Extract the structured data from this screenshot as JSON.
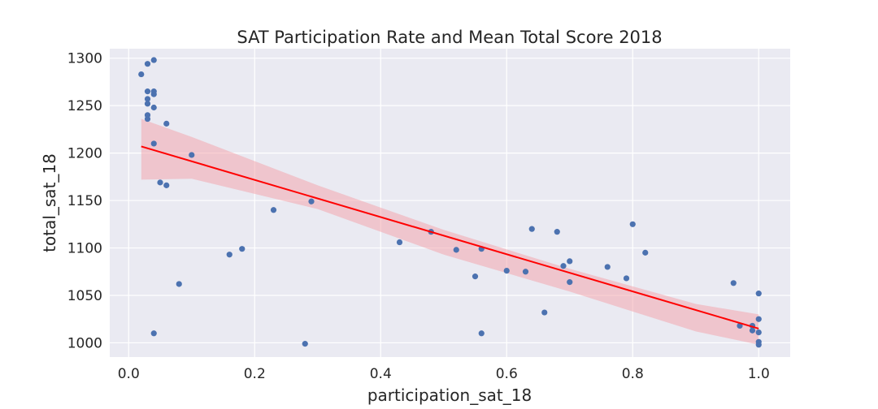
{
  "chart_data": {
    "type": "scatter",
    "title": "SAT Participation Rate and Mean Total Score 2018",
    "xlabel": "participation_sat_18",
    "ylabel": "total_sat_18",
    "xlim": [
      -0.03,
      1.05
    ],
    "ylim": [
      985,
      1310
    ],
    "x_ticks": [
      0.0,
      0.2,
      0.4,
      0.6,
      0.8,
      1.0
    ],
    "x_tick_labels": [
      "0.0",
      "0.2",
      "0.4",
      "0.6",
      "0.8",
      "1.0"
    ],
    "y_ticks": [
      1000,
      1050,
      1100,
      1150,
      1200,
      1250,
      1300
    ],
    "y_tick_labels": [
      "1000",
      "1050",
      "1100",
      "1150",
      "1200",
      "1250",
      "1300"
    ],
    "grid": true,
    "background_color": "#eaeaf2",
    "point_color": "#4c72b0",
    "regression_line_color": "#ff0000",
    "confidence_band_color": "#f4a0a8",
    "points": [
      {
        "x": 0.02,
        "y": 1283
      },
      {
        "x": 0.03,
        "y": 1294
      },
      {
        "x": 0.04,
        "y": 1298
      },
      {
        "x": 0.03,
        "y": 1265
      },
      {
        "x": 0.04,
        "y": 1265
      },
      {
        "x": 0.04,
        "y": 1262
      },
      {
        "x": 0.03,
        "y": 1257
      },
      {
        "x": 0.03,
        "y": 1252
      },
      {
        "x": 0.04,
        "y": 1248
      },
      {
        "x": 0.03,
        "y": 1240
      },
      {
        "x": 0.03,
        "y": 1236
      },
      {
        "x": 0.06,
        "y": 1231
      },
      {
        "x": 0.04,
        "y": 1210
      },
      {
        "x": 0.1,
        "y": 1198
      },
      {
        "x": 0.05,
        "y": 1169
      },
      {
        "x": 0.06,
        "y": 1166
      },
      {
        "x": 0.23,
        "y": 1140
      },
      {
        "x": 0.29,
        "y": 1149
      },
      {
        "x": 0.08,
        "y": 1062
      },
      {
        "x": 0.16,
        "y": 1093
      },
      {
        "x": 0.18,
        "y": 1099
      },
      {
        "x": 0.04,
        "y": 1010
      },
      {
        "x": 0.28,
        "y": 999
      },
      {
        "x": 0.43,
        "y": 1106
      },
      {
        "x": 0.48,
        "y": 1117
      },
      {
        "x": 0.52,
        "y": 1098
      },
      {
        "x": 0.55,
        "y": 1070
      },
      {
        "x": 0.56,
        "y": 1099
      },
      {
        "x": 0.56,
        "y": 1010
      },
      {
        "x": 0.6,
        "y": 1076
      },
      {
        "x": 0.63,
        "y": 1075
      },
      {
        "x": 0.64,
        "y": 1120
      },
      {
        "x": 0.66,
        "y": 1032
      },
      {
        "x": 0.68,
        "y": 1117
      },
      {
        "x": 0.69,
        "y": 1081
      },
      {
        "x": 0.7,
        "y": 1086
      },
      {
        "x": 0.7,
        "y": 1064
      },
      {
        "x": 0.76,
        "y": 1080
      },
      {
        "x": 0.79,
        "y": 1068
      },
      {
        "x": 0.8,
        "y": 1125
      },
      {
        "x": 0.82,
        "y": 1095
      },
      {
        "x": 0.96,
        "y": 1063
      },
      {
        "x": 0.97,
        "y": 1018
      },
      {
        "x": 0.99,
        "y": 1018
      },
      {
        "x": 0.99,
        "y": 1013
      },
      {
        "x": 1.0,
        "y": 1052
      },
      {
        "x": 1.0,
        "y": 1025
      },
      {
        "x": 1.0,
        "y": 1011
      },
      {
        "x": 1.0,
        "y": 1001
      },
      {
        "x": 1.0,
        "y": 998
      }
    ],
    "regression": {
      "x_start": 0.02,
      "y_start": 1207,
      "x_end": 1.0,
      "y_end": 1015
    },
    "confidence_band": {
      "x": [
        0.02,
        0.1,
        0.3,
        0.5,
        0.7,
        0.9,
        1.0
      ],
      "upper": [
        1236,
        1217,
        1166,
        1119,
        1078,
        1041,
        1030
      ],
      "lower": [
        1172,
        1173,
        1141,
        1093,
        1054,
        1012,
        998
      ]
    }
  }
}
